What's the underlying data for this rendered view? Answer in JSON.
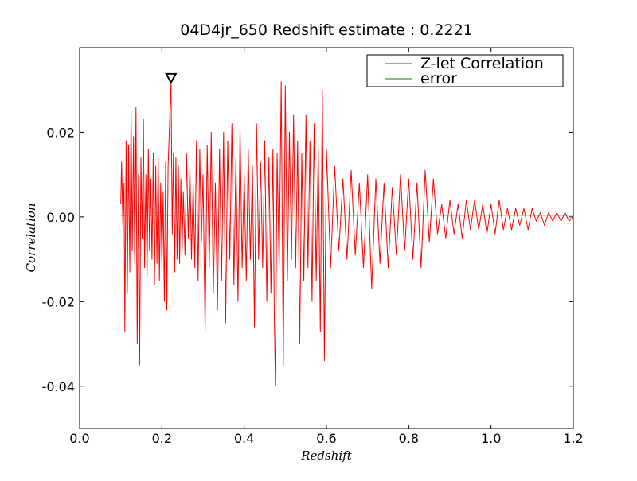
{
  "chart_data": {
    "type": "line",
    "title": "04D4jr_650 Redshift estimate : 0.2221",
    "xlabel": "Redshift",
    "ylabel": "Correlation",
    "xlim": [
      0.0,
      1.2
    ],
    "ylim": [
      -0.05,
      0.04
    ],
    "xticks": [
      "0.0",
      "0.2",
      "0.4",
      "0.6",
      "0.8",
      "1.0",
      "1.2"
    ],
    "yticks": [
      "0.02",
      "0.00",
      "-0.02",
      "-0.04"
    ],
    "ytick_values": [
      0.02,
      0.0,
      -0.02,
      -0.04
    ],
    "xtick_values": [
      0.0,
      0.2,
      0.4,
      0.6,
      0.8,
      1.0,
      1.2
    ],
    "legend_position": "top-right",
    "colors": {
      "correlation": "#ff0000",
      "error": "#008000",
      "marker": "#000000"
    },
    "series": [
      {
        "name": "Z-let Correlation",
        "x": [
          0.1,
          0.102,
          0.105,
          0.108,
          0.11,
          0.113,
          0.116,
          0.119,
          0.122,
          0.125,
          0.128,
          0.131,
          0.134,
          0.137,
          0.14,
          0.143,
          0.146,
          0.149,
          0.152,
          0.155,
          0.158,
          0.161,
          0.164,
          0.167,
          0.17,
          0.173,
          0.176,
          0.179,
          0.182,
          0.185,
          0.188,
          0.191,
          0.194,
          0.197,
          0.2,
          0.203,
          0.206,
          0.209,
          0.212,
          0.215,
          0.2221,
          0.225,
          0.228,
          0.231,
          0.234,
          0.237,
          0.24,
          0.243,
          0.246,
          0.249,
          0.252,
          0.256,
          0.26,
          0.264,
          0.268,
          0.272,
          0.276,
          0.28,
          0.284,
          0.288,
          0.292,
          0.296,
          0.3,
          0.305,
          0.31,
          0.315,
          0.32,
          0.325,
          0.33,
          0.335,
          0.34,
          0.345,
          0.35,
          0.355,
          0.36,
          0.365,
          0.37,
          0.375,
          0.38,
          0.385,
          0.39,
          0.395,
          0.4,
          0.405,
          0.41,
          0.415,
          0.42,
          0.425,
          0.43,
          0.435,
          0.44,
          0.445,
          0.45,
          0.455,
          0.46,
          0.465,
          0.47,
          0.473,
          0.476,
          0.48,
          0.485,
          0.49,
          0.495,
          0.5,
          0.505,
          0.51,
          0.515,
          0.52,
          0.525,
          0.53,
          0.535,
          0.54,
          0.545,
          0.55,
          0.555,
          0.56,
          0.565,
          0.57,
          0.575,
          0.58,
          0.585,
          0.59,
          0.595,
          0.6,
          0.61,
          0.62,
          0.63,
          0.64,
          0.65,
          0.66,
          0.67,
          0.68,
          0.69,
          0.7,
          0.71,
          0.72,
          0.73,
          0.74,
          0.75,
          0.76,
          0.77,
          0.78,
          0.79,
          0.8,
          0.81,
          0.82,
          0.83,
          0.84,
          0.85,
          0.86,
          0.87,
          0.88,
          0.89,
          0.9,
          0.91,
          0.92,
          0.93,
          0.94,
          0.95,
          0.96,
          0.97,
          0.98,
          0.99,
          1.0,
          1.01,
          1.02,
          1.03,
          1.04,
          1.05,
          1.06,
          1.07,
          1.08,
          1.09,
          1.1,
          1.11,
          1.12,
          1.13,
          1.14,
          1.15,
          1.16,
          1.17,
          1.18,
          1.19,
          1.2
        ],
        "y": [
          0.003,
          0.013,
          -0.002,
          0.008,
          -0.027,
          0.018,
          -0.018,
          0.017,
          -0.013,
          0.025,
          -0.008,
          0.019,
          -0.011,
          0.026,
          -0.03,
          0.01,
          -0.035,
          0.014,
          -0.005,
          0.023,
          -0.012,
          0.01,
          -0.014,
          0.016,
          -0.008,
          0.009,
          -0.01,
          0.015,
          -0.016,
          0.012,
          -0.011,
          0.014,
          -0.015,
          0.008,
          -0.012,
          0.006,
          -0.02,
          0.013,
          -0.022,
          0.012,
          0.032,
          -0.004,
          0.015,
          -0.013,
          0.014,
          -0.01,
          0.012,
          -0.011,
          0.009,
          -0.008,
          0.006,
          -0.009,
          0.015,
          -0.005,
          0.012,
          -0.01,
          0.008,
          -0.012,
          0.018,
          -0.015,
          0.016,
          -0.006,
          0.01,
          -0.027,
          0.017,
          -0.012,
          0.02,
          -0.018,
          0.008,
          -0.022,
          0.016,
          -0.015,
          0.02,
          -0.025,
          0.018,
          -0.01,
          0.022,
          -0.016,
          0.014,
          -0.02,
          0.021,
          -0.012,
          0.01,
          -0.015,
          0.016,
          -0.01,
          0.012,
          -0.026,
          0.022,
          -0.01,
          0.013,
          -0.012,
          0.018,
          -0.02,
          0.014,
          -0.018,
          0.016,
          -0.022,
          -0.04,
          0.015,
          -0.012,
          0.032,
          -0.035,
          0.031,
          -0.015,
          0.02,
          -0.01,
          0.024,
          -0.012,
          0.018,
          -0.03,
          0.015,
          -0.015,
          0.024,
          -0.012,
          0.018,
          -0.02,
          0.022,
          -0.015,
          0.016,
          -0.027,
          0.03,
          -0.034,
          0.016,
          -0.012,
          0.012,
          -0.008,
          0.009,
          -0.01,
          0.011,
          -0.009,
          0.008,
          -0.012,
          0.01,
          -0.017,
          0.009,
          -0.011,
          0.008,
          -0.012,
          0.007,
          -0.009,
          0.01,
          -0.008,
          0.009,
          -0.01,
          0.008,
          -0.012,
          0.011,
          -0.006,
          0.009,
          -0.004,
          0.003,
          -0.005,
          0.004,
          -0.004,
          0.003,
          -0.005,
          0.004,
          -0.003,
          0.004,
          -0.003,
          0.003,
          -0.004,
          0.003,
          -0.004,
          0.004,
          -0.003,
          0.002,
          -0.003,
          0.002,
          -0.002,
          0.002,
          -0.003,
          0.002,
          -0.001,
          0.001,
          -0.002,
          0.001,
          -0.001,
          0.001,
          -0.001,
          0.001,
          -0.001,
          0.0
        ]
      },
      {
        "name": "error",
        "x": [
          0.1,
          1.2
        ],
        "y": [
          0.0004,
          0.0004
        ]
      }
    ],
    "annotations": [
      {
        "label": "peak-marker",
        "x": 0.2221,
        "y": 0.0327,
        "shape": "triangle-down"
      }
    ]
  }
}
